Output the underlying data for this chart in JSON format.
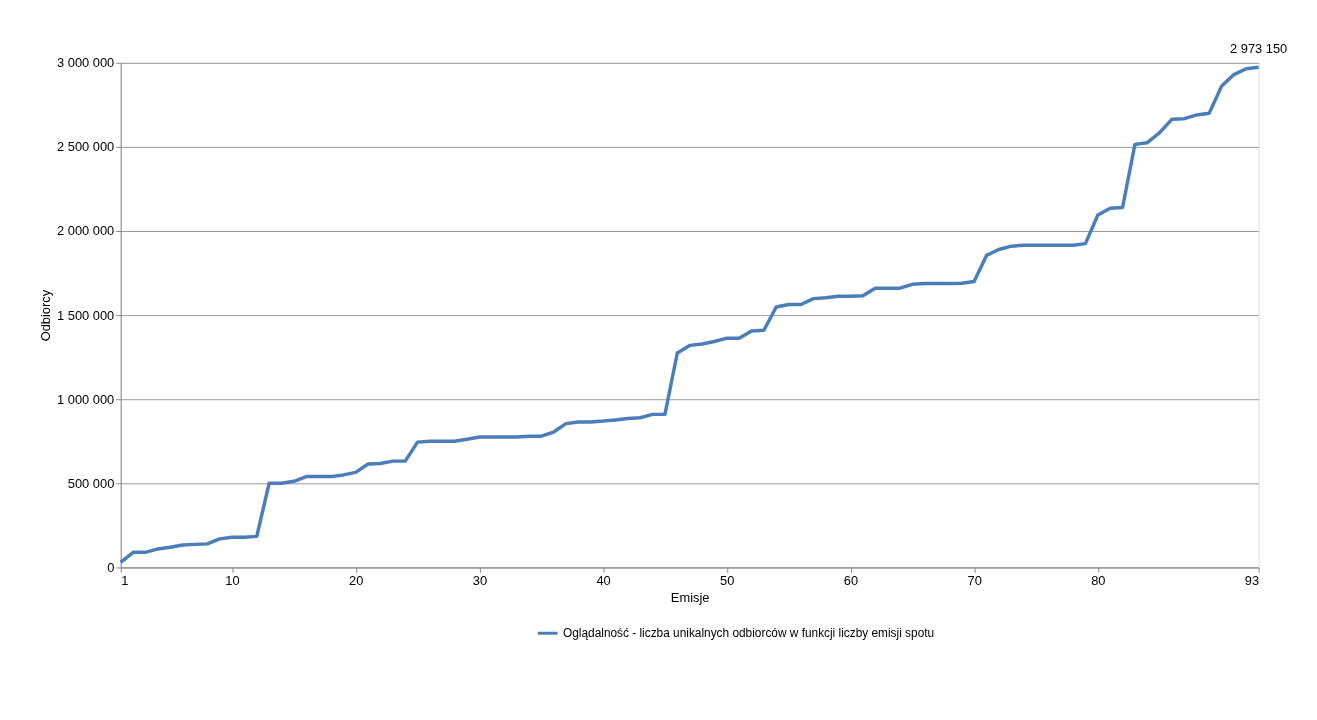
{
  "chart_data": {
    "type": "line",
    "xlabel": "Emisje",
    "ylabel": "Odbiorcy",
    "x": [
      1,
      2,
      3,
      4,
      5,
      6,
      7,
      8,
      9,
      10,
      11,
      12,
      13,
      14,
      15,
      16,
      17,
      18,
      19,
      20,
      21,
      22,
      23,
      24,
      25,
      26,
      27,
      28,
      29,
      30,
      31,
      32,
      33,
      34,
      35,
      36,
      37,
      38,
      39,
      40,
      41,
      42,
      43,
      44,
      45,
      46,
      47,
      48,
      49,
      50,
      51,
      52,
      53,
      54,
      55,
      56,
      57,
      58,
      59,
      60,
      61,
      62,
      63,
      64,
      65,
      66,
      67,
      68,
      69,
      70,
      71,
      72,
      73,
      74,
      75,
      76,
      77,
      78,
      79,
      80,
      81,
      82,
      83,
      84,
      85,
      86,
      87,
      88,
      89,
      90,
      91,
      92,
      93
    ],
    "series": [
      {
        "name": "Oglądalność  - liczba unikalnych odbiorców w funkcji liczby emisji spotu",
        "color": "#4a7ebb",
        "values": [
          30000,
          90000,
          90000,
          110000,
          120000,
          133000,
          137000,
          140000,
          170000,
          180000,
          180000,
          185000,
          500000,
          500000,
          512000,
          540000,
          540000,
          540000,
          550000,
          565000,
          615000,
          618000,
          632000,
          632000,
          745000,
          750000,
          750000,
          750000,
          762000,
          775000,
          775000,
          775000,
          775000,
          780000,
          780000,
          805000,
          855000,
          865000,
          865000,
          870000,
          877000,
          885000,
          890000,
          910000,
          910000,
          1275000,
          1320000,
          1328000,
          1343000,
          1363000,
          1363000,
          1405000,
          1410000,
          1548000,
          1563000,
          1563000,
          1598000,
          1603000,
          1612000,
          1612000,
          1615000,
          1660000,
          1660000,
          1660000,
          1683000,
          1688000,
          1688000,
          1688000,
          1690000,
          1700000,
          1855000,
          1890000,
          1910000,
          1915000,
          1915000,
          1915000,
          1915000,
          1915000,
          1925000,
          2095000,
          2135000,
          2140000,
          2515000,
          2525000,
          2585000,
          2665000,
          2668000,
          2690000,
          2700000,
          2860000,
          2930000,
          2965000,
          2973150
        ]
      }
    ],
    "xlim": [
      1,
      93
    ],
    "xticks": [
      1,
      10,
      20,
      30,
      40,
      50,
      60,
      70,
      80,
      93
    ],
    "ylim": [
      0,
      3000000
    ],
    "yticks": [
      {
        "value": 0,
        "label": "0"
      },
      {
        "value": 500000,
        "label": "500 000"
      },
      {
        "value": 1000000,
        "label": "1 000 000"
      },
      {
        "value": 1500000,
        "label": "1 500 000"
      },
      {
        "value": 2000000,
        "label": "2 000 000"
      },
      {
        "value": 2500000,
        "label": "2 500 000"
      },
      {
        "value": 3000000,
        "label": "3 000 000"
      }
    ],
    "annotations": [
      {
        "text": "2 973 150",
        "x": 93,
        "y": 2973150
      }
    ],
    "grid": "y",
    "legend": "bottom",
    "marker": "none",
    "line_style": "solid"
  }
}
